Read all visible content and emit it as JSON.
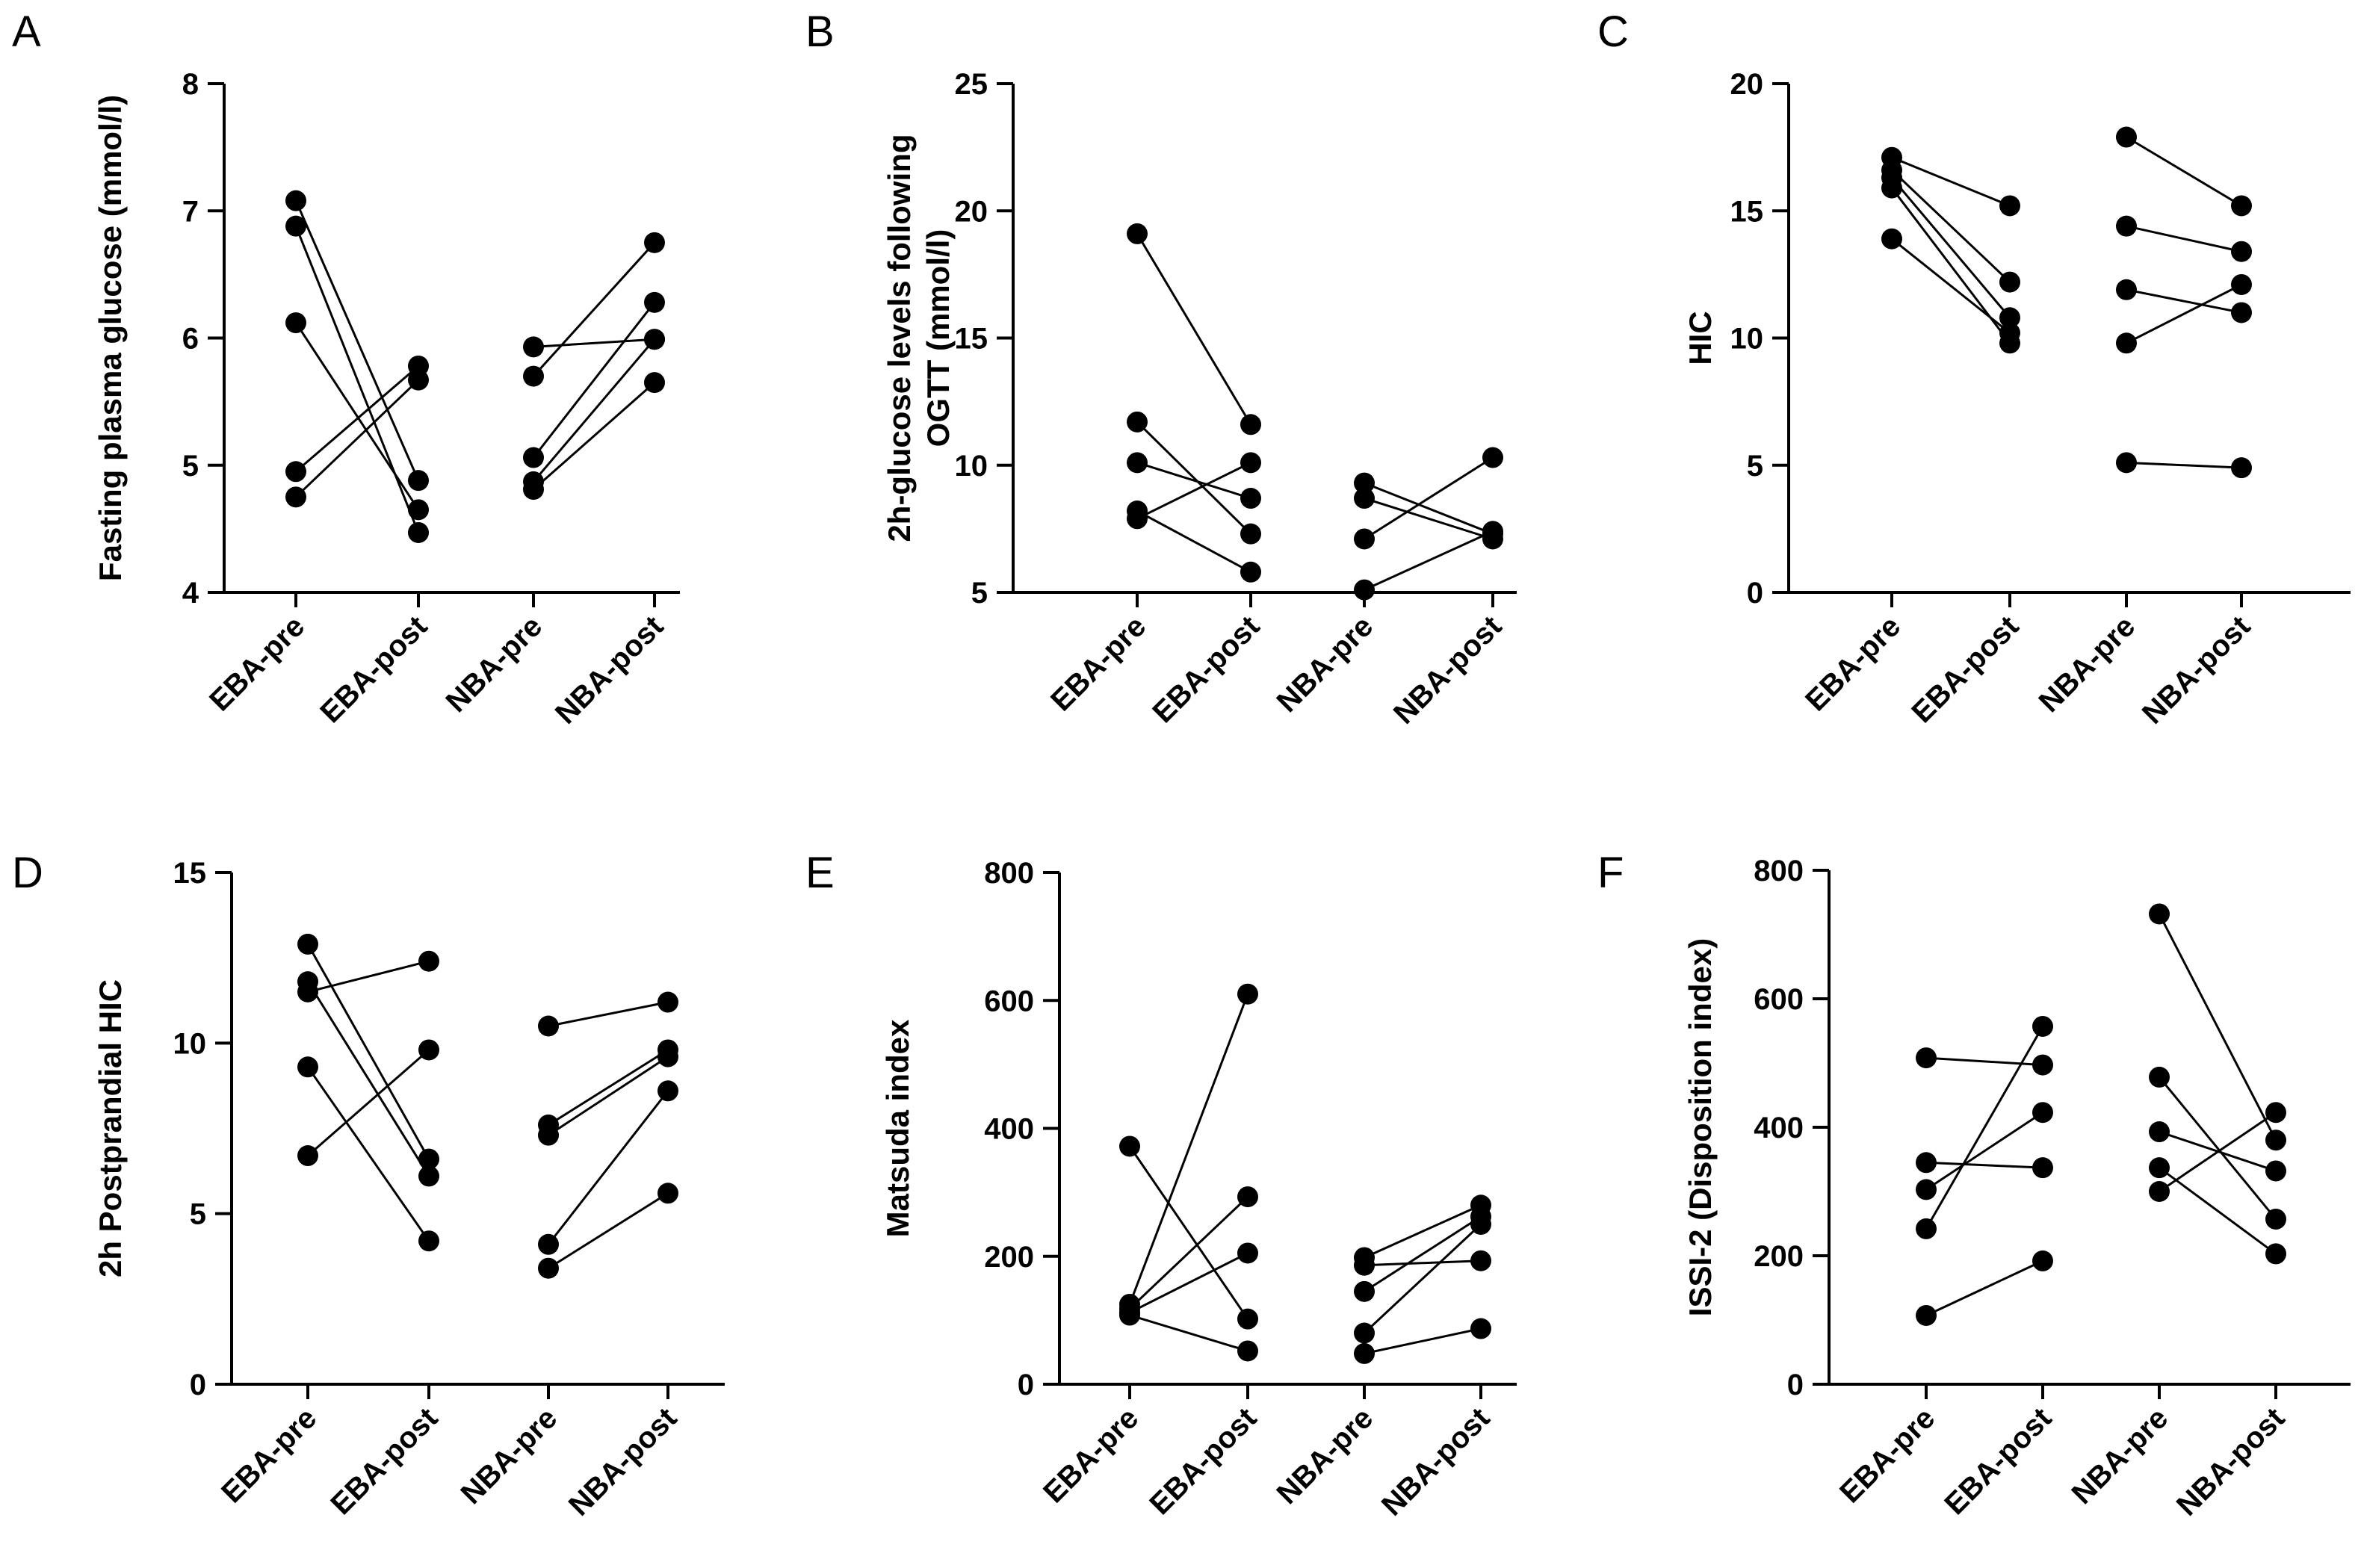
{
  "figure": {
    "point_color": "#000000",
    "line_color": "#000000"
  },
  "chart_data": [
    {
      "panel": "A",
      "type": "scatter",
      "title": "",
      "ylabel": "Fasting plasma glucose (mmol/l)",
      "ylabel_lines": [
        "Fasting plasma glucose (mmol/l)"
      ],
      "ylim": [
        4,
        8
      ],
      "yticks": [
        4,
        5,
        6,
        7,
        8
      ],
      "categories": [
        "EBA-pre",
        "EBA-post",
        "NBA-pre",
        "NBA-post"
      ],
      "pairs": [
        {
          "group": "EBA",
          "pre": 7.08,
          "post": 4.88
        },
        {
          "group": "EBA",
          "pre": 6.88,
          "post": 4.47
        },
        {
          "group": "EBA",
          "pre": 6.12,
          "post": 4.65
        },
        {
          "group": "EBA",
          "pre": 4.95,
          "post": 5.78
        },
        {
          "group": "EBA",
          "pre": 4.75,
          "post": 5.67
        },
        {
          "group": "NBA",
          "pre": 5.93,
          "post": 5.99
        },
        {
          "group": "NBA",
          "pre": 5.7,
          "post": 6.75
        },
        {
          "group": "NBA",
          "pre": 5.06,
          "post": 6.28
        },
        {
          "group": "NBA",
          "pre": 4.87,
          "post": 5.99
        },
        {
          "group": "NBA",
          "pre": 4.81,
          "post": 5.65
        }
      ]
    },
    {
      "panel": "B",
      "type": "scatter",
      "title": "",
      "ylabel": "2h-glucose levels following OGTT (mmol/l)",
      "ylabel_lines": [
        "2h-glucose levels following",
        "OGTT (mmol/l)"
      ],
      "ylim": [
        5,
        25
      ],
      "yticks": [
        5,
        10,
        15,
        20,
        25
      ],
      "categories": [
        "EBA-pre",
        "EBA-post",
        "NBA-pre",
        "NBA-post"
      ],
      "pairs": [
        {
          "group": "EBA",
          "pre": 19.1,
          "post": 11.6
        },
        {
          "group": "EBA",
          "pre": 11.7,
          "post": 7.3
        },
        {
          "group": "EBA",
          "pre": 10.1,
          "post": 8.7
        },
        {
          "group": "EBA",
          "pre": 8.2,
          "post": 5.8
        },
        {
          "group": "EBA",
          "pre": 7.9,
          "post": 10.1
        },
        {
          "group": "NBA",
          "pre": 9.3,
          "post": 7.3
        },
        {
          "group": "NBA",
          "pre": 8.7,
          "post": 7.1
        },
        {
          "group": "NBA",
          "pre": 7.1,
          "post": 10.3
        },
        {
          "group": "NBA",
          "pre": 5.1,
          "post": 7.4
        }
      ]
    },
    {
      "panel": "C",
      "type": "scatter",
      "title": "",
      "ylabel": "HIC",
      "ylabel_lines": [
        "HIC"
      ],
      "ylim": [
        0,
        20
      ],
      "yticks": [
        0,
        5,
        10,
        15,
        20
      ],
      "categories": [
        "EBA-pre",
        "EBA-post",
        "NBA-pre",
        "NBA-post"
      ],
      "pairs": [
        {
          "group": "EBA",
          "pre": 17.1,
          "post": 15.2
        },
        {
          "group": "EBA",
          "pre": 16.6,
          "post": 12.2
        },
        {
          "group": "EBA",
          "pre": 16.3,
          "post": 10.8
        },
        {
          "group": "EBA",
          "pre": 15.9,
          "post": 9.8
        },
        {
          "group": "EBA",
          "pre": 13.9,
          "post": 10.2
        },
        {
          "group": "NBA",
          "pre": 17.9,
          "post": 15.2
        },
        {
          "group": "NBA",
          "pre": 14.4,
          "post": 13.4
        },
        {
          "group": "NBA",
          "pre": 11.9,
          "post": 11.0
        },
        {
          "group": "NBA",
          "pre": 9.8,
          "post": 12.1
        },
        {
          "group": "NBA",
          "pre": 5.1,
          "post": 4.9
        }
      ]
    },
    {
      "panel": "D",
      "type": "scatter",
      "title": "",
      "ylabel": "2h Postprandial HIC",
      "ylabel_lines": [
        "2h Postprandial HIC"
      ],
      "ylim": [
        0,
        15
      ],
      "yticks": [
        0,
        5,
        10,
        15
      ],
      "categories": [
        "EBA-pre",
        "EBA-post",
        "NBA-pre",
        "NBA-post"
      ],
      "pairs": [
        {
          "group": "EBA",
          "pre": 12.9,
          "post": 6.6
        },
        {
          "group": "EBA",
          "pre": 11.8,
          "post": 6.1
        },
        {
          "group": "EBA",
          "pre": 11.5,
          "post": 12.4
        },
        {
          "group": "EBA",
          "pre": 9.3,
          "post": 4.2
        },
        {
          "group": "EBA",
          "pre": 6.7,
          "post": 9.8
        },
        {
          "group": "NBA",
          "pre": 10.5,
          "post": 11.2
        },
        {
          "group": "NBA",
          "pre": 7.6,
          "post": 9.8
        },
        {
          "group": "NBA",
          "pre": 7.3,
          "post": 9.6
        },
        {
          "group": "NBA",
          "pre": 4.1,
          "post": 8.6
        },
        {
          "group": "NBA",
          "pre": 3.4,
          "post": 5.6
        }
      ]
    },
    {
      "panel": "E",
      "type": "scatter",
      "title": "",
      "ylabel": "Matsuda index",
      "ylabel_lines": [
        "Matsuda index"
      ],
      "ylim": [
        0,
        800
      ],
      "yticks": [
        0,
        200,
        400,
        600,
        800
      ],
      "categories": [
        "EBA-pre",
        "EBA-post",
        "NBA-pre",
        "NBA-post"
      ],
      "pairs": [
        {
          "group": "EBA",
          "pre": 372,
          "post": 102
        },
        {
          "group": "EBA",
          "pre": 125,
          "post": 610
        },
        {
          "group": "EBA",
          "pre": 118,
          "post": 293
        },
        {
          "group": "EBA",
          "pre": 112,
          "post": 205
        },
        {
          "group": "EBA",
          "pre": 108,
          "post": 52
        },
        {
          "group": "NBA",
          "pre": 198,
          "post": 280
        },
        {
          "group": "NBA",
          "pre": 186,
          "post": 193
        },
        {
          "group": "NBA",
          "pre": 145,
          "post": 262
        },
        {
          "group": "NBA",
          "pre": 80,
          "post": 250
        },
        {
          "group": "NBA",
          "pre": 48,
          "post": 87
        }
      ]
    },
    {
      "panel": "F",
      "type": "scatter",
      "title": "",
      "ylabel": "ISSI-2 (Disposition index)",
      "ylabel_lines": [
        "ISSI-2 (Disposition index)"
      ],
      "ylim": [
        0,
        800
      ],
      "yticks": [
        0,
        200,
        400,
        600,
        800
      ],
      "categories": [
        "EBA-pre",
        "EBA-post",
        "NBA-pre",
        "NBA-post"
      ],
      "pairs": [
        {
          "group": "EBA",
          "pre": 508,
          "post": 497
        },
        {
          "group": "EBA",
          "pre": 345,
          "post": 337
        },
        {
          "group": "EBA",
          "pre": 303,
          "post": 423
        },
        {
          "group": "EBA",
          "pre": 242,
          "post": 557
        },
        {
          "group": "EBA",
          "pre": 107,
          "post": 192
        },
        {
          "group": "NBA",
          "pre": 732,
          "post": 380
        },
        {
          "group": "NBA",
          "pre": 478,
          "post": 257
        },
        {
          "group": "NBA",
          "pre": 393,
          "post": 332
        },
        {
          "group": "NBA",
          "pre": 337,
          "post": 203
        },
        {
          "group": "NBA",
          "pre": 300,
          "post": 423
        }
      ]
    }
  ]
}
